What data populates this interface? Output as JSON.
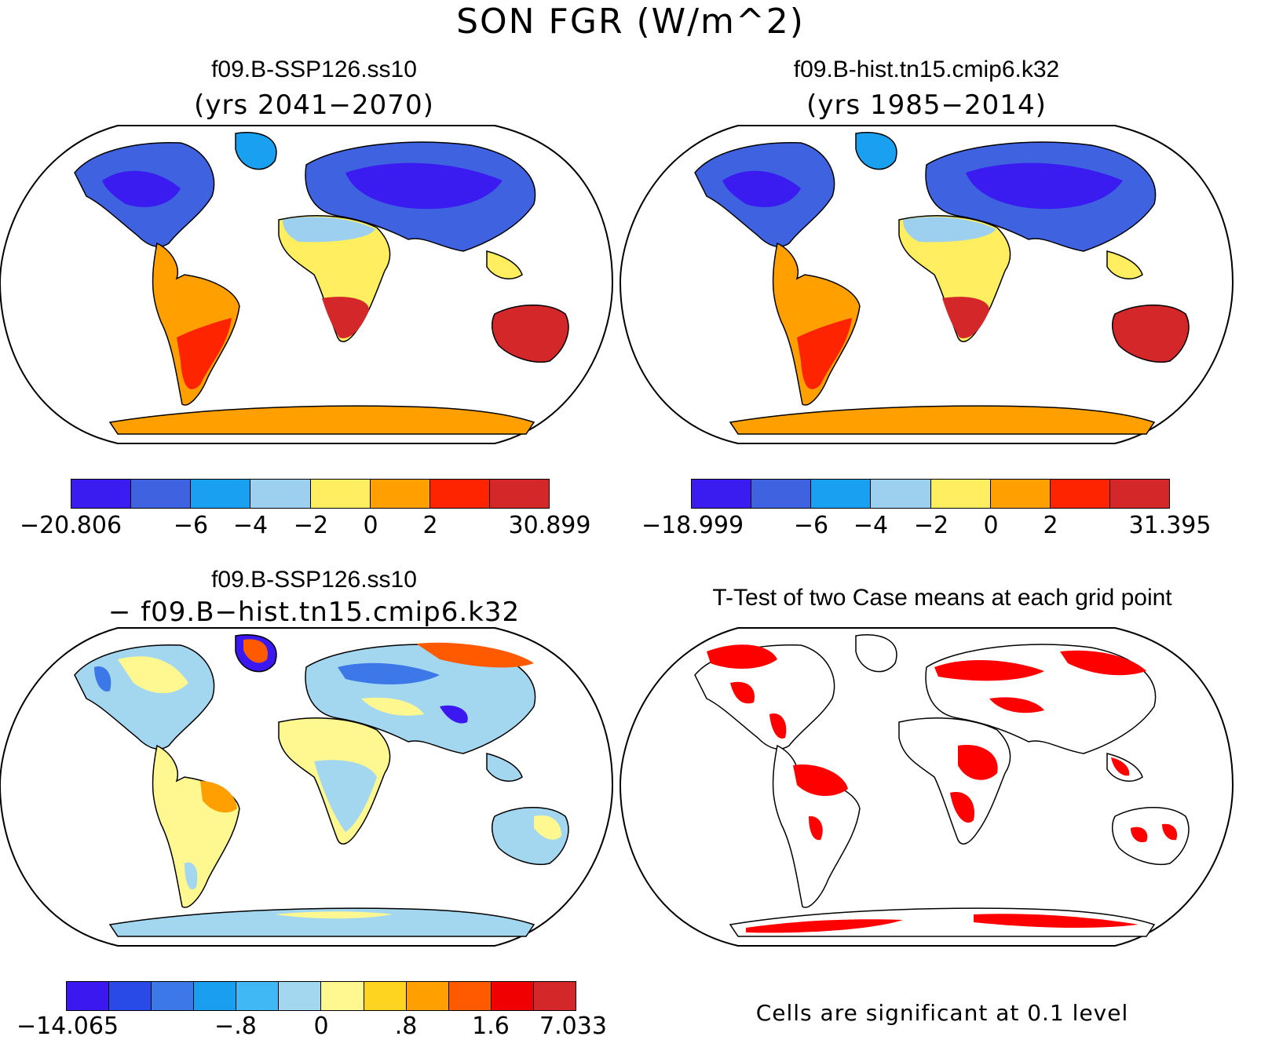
{
  "figure": {
    "title": "SON FGR (W/m^2)"
  },
  "panels": [
    {
      "title": "f09.B-SSP126.ss10",
      "subtitle": "(yrs 2041−2070)",
      "colorbar": {
        "colors": [
          "#3b1cf0",
          "#3f63e0",
          "#1aa0f0",
          "#9dd0ef",
          "#ffee60",
          "#ff9f00",
          "#ff2400",
          "#d3272a"
        ],
        "ticks": [
          "−20.806",
          "−6",
          "−4",
          "−2",
          "0",
          "2",
          "30.899"
        ]
      }
    },
    {
      "title": "f09.B-hist.tn15.cmip6.k32",
      "subtitle": "(yrs 1985−2014)",
      "colorbar": {
        "colors": [
          "#3b1cf0",
          "#3f63e0",
          "#1aa0f0",
          "#9dd0ef",
          "#ffee60",
          "#ff9f00",
          "#ff2400",
          "#d3272a"
        ],
        "ticks": [
          "−18.999",
          "−6",
          "−4",
          "−2",
          "0",
          "2",
          "31.395"
        ]
      }
    },
    {
      "title": "f09.B-SSP126.ss10",
      "subtitle": "− f09.B−hist.tn15.cmip6.k32",
      "colorbar": {
        "colors": [
          "#3b18f0",
          "#2a4ae8",
          "#3d78e8",
          "#1a9ef0",
          "#3fb8f5",
          "#a3d6ef",
          "#fff890",
          "#ffd420",
          "#ff9f00",
          "#ff5a00",
          "#f00000",
          "#d3272a"
        ],
        "ticks": [
          "−14.065",
          "−.8",
          "0",
          ".8",
          "1.6",
          "7.033"
        ]
      }
    },
    {
      "title": "T-Test of two Case means at each grid point",
      "note": "Cells are significant at 0.1 level",
      "significant_color": "#ff0000"
    }
  ]
}
